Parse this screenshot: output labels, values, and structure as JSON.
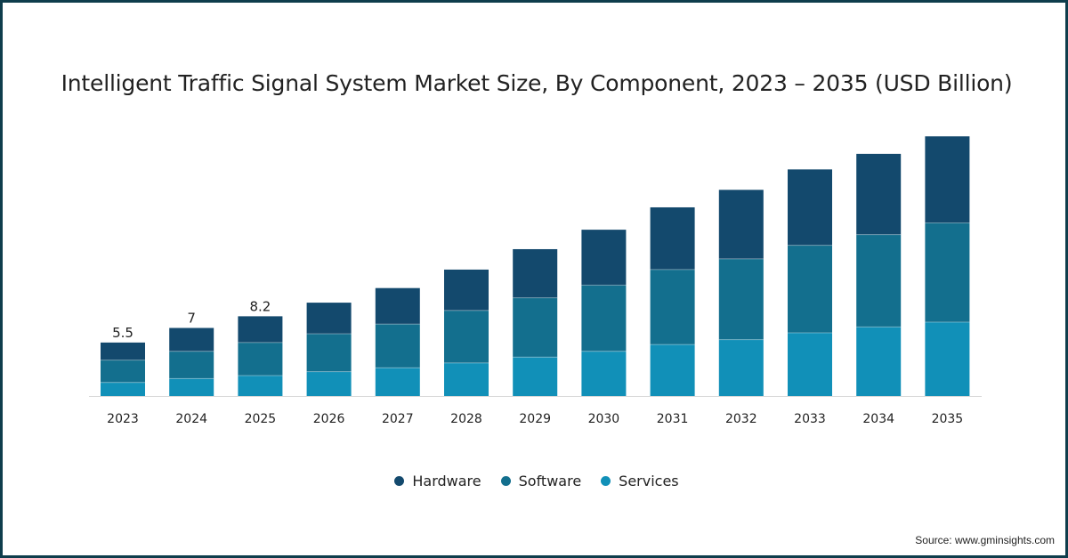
{
  "chart_data": {
    "type": "bar",
    "stacked": true,
    "title": "Intelligent Traffic Signal System Market Size, By Component, 2023 – 2035 (USD Billion)",
    "categories": [
      "2023",
      "2024",
      "2025",
      "2026",
      "2027",
      "2028",
      "2029",
      "2030",
      "2031",
      "2032",
      "2033",
      "2034",
      "2035"
    ],
    "series": [
      {
        "name": "Services",
        "color": "#1190b8",
        "values": [
          1.4,
          1.8,
          2.1,
          2.5,
          2.9,
          3.4,
          4.0,
          4.6,
          5.3,
          5.8,
          6.5,
          7.1,
          7.6
        ]
      },
      {
        "name": "Software",
        "color": "#136f8e",
        "values": [
          2.3,
          2.8,
          3.4,
          3.9,
          4.5,
          5.4,
          6.1,
          6.8,
          7.7,
          8.3,
          9.0,
          9.5,
          10.2
        ]
      },
      {
        "name": "Hardware",
        "color": "#13496d",
        "values": [
          1.8,
          2.4,
          2.7,
          3.2,
          3.7,
          4.2,
          5.0,
          5.7,
          6.4,
          7.1,
          7.8,
          8.3,
          8.9
        ]
      }
    ],
    "data_labels": {
      "2023": "5.5",
      "2024": "7",
      "2025": "8.2"
    },
    "ylim": [
      0,
      28
    ],
    "xlabel": "",
    "ylabel": "",
    "legend_position": "bottom-center"
  },
  "source": "Source: www.gminsights.com"
}
